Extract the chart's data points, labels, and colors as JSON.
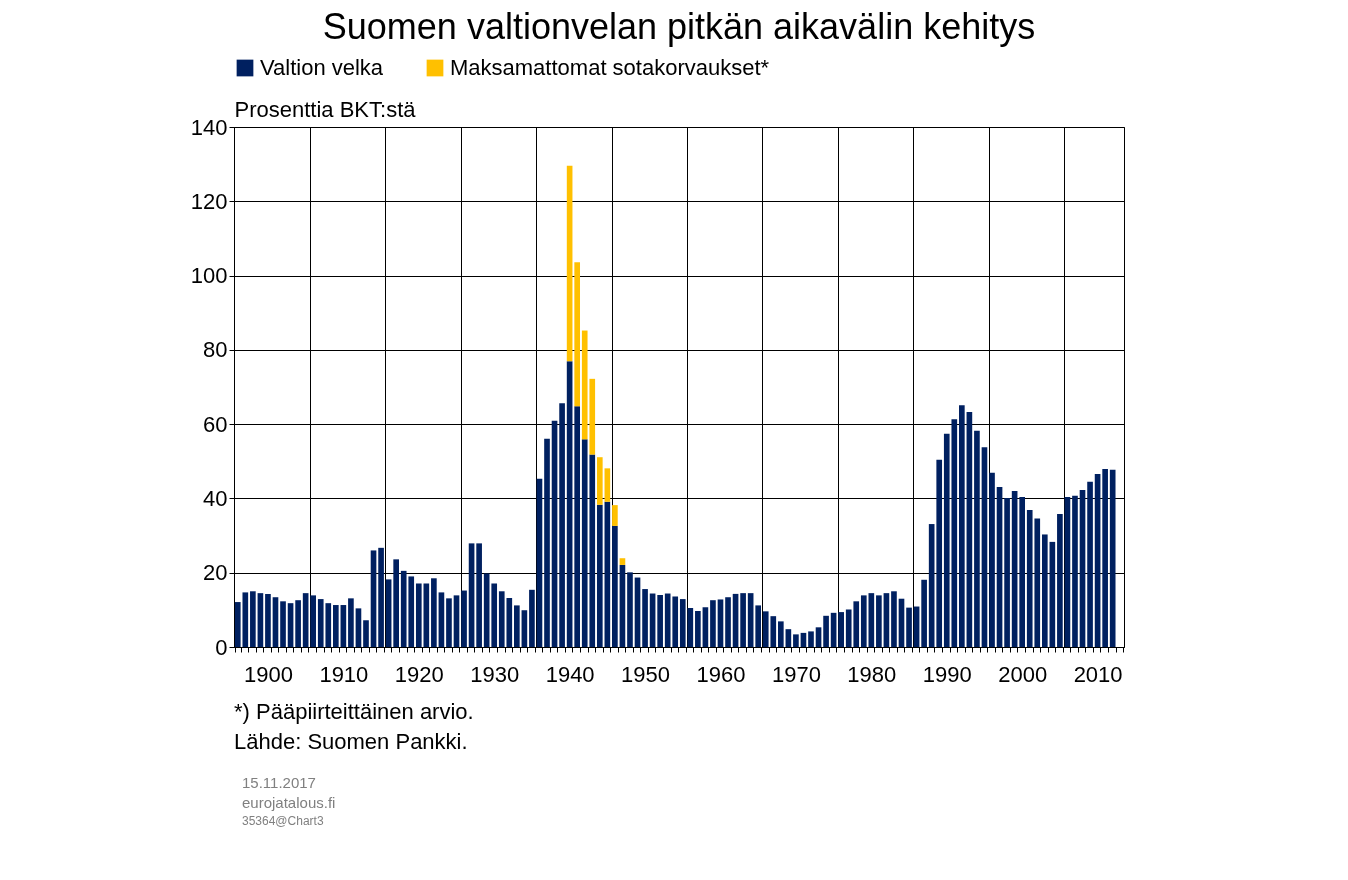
{
  "chart_data": {
    "type": "bar",
    "title": "Suomen valtionvelan pitkän aikavälin kehitys",
    "ylabel": "Prosenttia BKT:stä",
    "categories": [
      null,
      null,
      null,
      null,
      "1900",
      null,
      null,
      null,
      null,
      null,
      null,
      null,
      null,
      null,
      "1910",
      null,
      null,
      null,
      null,
      null,
      null,
      null,
      null,
      null,
      "1920",
      null,
      null,
      null,
      null,
      null,
      null,
      null,
      null,
      null,
      "1930",
      null,
      null,
      null,
      null,
      null,
      null,
      null,
      null,
      null,
      "1940",
      null,
      null,
      null,
      null,
      null,
      null,
      null,
      null,
      null,
      "1950",
      null,
      null,
      null,
      null,
      null,
      null,
      null,
      null,
      null,
      "1960",
      null,
      null,
      null,
      null,
      null,
      null,
      null,
      null,
      null,
      "1970",
      null,
      null,
      null,
      null,
      null,
      null,
      null,
      null,
      null,
      "1980",
      null,
      null,
      null,
      null,
      null,
      null,
      null,
      null,
      null,
      "1990",
      null,
      null,
      null,
      null,
      null,
      null,
      null,
      null,
      null,
      "2000",
      null,
      null,
      null,
      null,
      null,
      null,
      null,
      null,
      null,
      "2010",
      null,
      null,
      null
    ],
    "series": [
      {
        "name": "Valtion velka",
        "color": "#002060",
        "values": [
          12.1,
          14.7,
          15.0,
          14.5,
          14.3,
          13.4,
          12.3,
          11.8,
          12.6,
          14.5,
          13.9,
          12.9,
          11.8,
          11.3,
          11.3,
          13.1,
          10.4,
          7.2,
          26.0,
          26.7,
          18.2,
          23.6,
          20.5,
          19.0,
          17.1,
          17.1,
          18.5,
          14.7,
          13.1,
          13.9,
          15.2,
          27.9,
          27.9,
          19.8,
          17.1,
          15.0,
          13.2,
          11.2,
          9.9,
          15.4,
          45.3,
          56.1,
          60.9,
          65.6,
          76.9,
          64.8,
          55.9,
          51.8,
          38.3,
          39.1,
          32.6,
          22.1,
          20.1,
          18.7,
          15.6,
          14.4,
          14.0,
          14.4,
          13.6,
          12.9,
          10.5,
          9.7,
          10.7,
          12.6,
          12.8,
          13.4,
          14.3,
          14.5,
          14.5,
          11.2,
          9.6,
          8.3,
          6.9,
          4.8,
          3.4,
          3.8,
          4.2,
          5.3,
          8.4,
          9.2,
          9.4,
          10.1,
          12.3,
          13.9,
          14.5,
          13.9,
          14.5,
          15.0,
          13.0,
          10.6,
          10.9,
          18.1,
          33.1,
          50.4,
          57.4,
          61.3,
          65.1,
          63.3,
          58.2,
          53.8,
          46.9,
          43.1,
          40.1,
          42.0,
          40.4,
          36.9,
          34.6,
          30.3,
          28.3,
          35.8,
          40.4,
          40.7,
          42.3,
          44.5,
          46.6,
          47.9,
          47.7,
          null
        ]
      },
      {
        "name": "Maksamattomat sotakorvaukset*",
        "color": "#ffc000",
        "values": [
          null,
          null,
          null,
          null,
          null,
          null,
          null,
          null,
          null,
          null,
          null,
          null,
          null,
          null,
          null,
          null,
          null,
          null,
          null,
          null,
          null,
          null,
          null,
          null,
          null,
          null,
          null,
          null,
          null,
          null,
          null,
          null,
          null,
          null,
          null,
          null,
          null,
          null,
          null,
          null,
          null,
          null,
          null,
          null,
          52.7,
          38.8,
          29.3,
          20.4,
          12.8,
          9.0,
          5.6,
          1.8,
          null,
          null,
          null,
          null,
          null,
          null,
          null,
          null,
          null,
          null,
          null,
          null,
          null,
          null,
          null,
          null,
          null,
          null,
          null,
          null,
          null,
          null,
          null,
          null,
          null,
          null,
          null,
          null,
          null,
          null,
          null,
          null,
          null,
          null,
          null,
          null,
          null,
          null,
          null,
          null,
          null,
          null,
          null,
          null,
          null,
          null,
          null,
          null,
          null,
          null,
          null,
          null,
          null,
          null,
          null,
          null,
          null,
          null,
          null,
          null,
          null,
          null,
          null,
          null,
          null,
          null
        ]
      }
    ],
    "stacked": true,
    "ylim": [
      0,
      140
    ],
    "yticks": [
      0,
      20,
      40,
      60,
      80,
      100,
      120,
      140
    ],
    "grid": true,
    "legend": "top",
    "annotations": [
      "*) Pääpiirteittäinen arvio.",
      "Lähde: Suomen Pankki.",
      "15.11.2017",
      "eurojatalous.fi",
      "35364@Chart3"
    ]
  }
}
